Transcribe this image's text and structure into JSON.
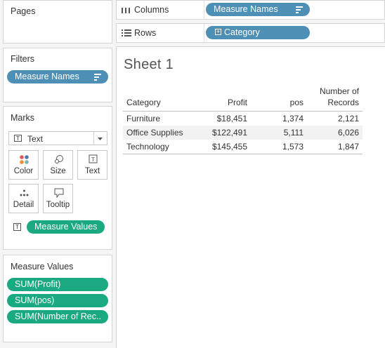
{
  "pages": {
    "title": "Pages"
  },
  "filters": {
    "title": "Filters",
    "pill": "Measure Names"
  },
  "marks": {
    "title": "Marks",
    "type_select": "Text",
    "buttons": [
      {
        "label": "Color",
        "icon": "color-dots-icon"
      },
      {
        "label": "Size",
        "icon": "size-icon"
      },
      {
        "label": "Text",
        "icon": "text-icon"
      },
      {
        "label": "Detail",
        "icon": "detail-dots-icon"
      },
      {
        "label": "Tooltip",
        "icon": "tooltip-icon"
      }
    ],
    "text_pill": "Measure Values"
  },
  "measure_values": {
    "title": "Measure Values",
    "pills": [
      "SUM(Profit)",
      "SUM(pos)",
      "SUM(Number of Rec.."
    ]
  },
  "shelves": {
    "columns": {
      "label": "Columns",
      "pill": "Measure Names"
    },
    "rows": {
      "label": "Rows",
      "pill": "Category"
    }
  },
  "sheet": {
    "title": "Sheet 1",
    "headers": {
      "category": "Category",
      "profit": "Profit",
      "pos": "pos",
      "records_line1": "Number of",
      "records_line2": "Records"
    },
    "rows": [
      {
        "category": "Furniture",
        "profit": "$18,451",
        "pos": "1,374",
        "records": "2,121"
      },
      {
        "category": "Office Supplies",
        "profit": "$122,491",
        "pos": "5,111",
        "records": "6,026"
      },
      {
        "category": "Technology",
        "profit": "$145,455",
        "pos": "1,573",
        "records": "1,847"
      }
    ]
  },
  "colors": {
    "blue_pill": "#4e8fb6",
    "green_pill": "#1aa981"
  }
}
